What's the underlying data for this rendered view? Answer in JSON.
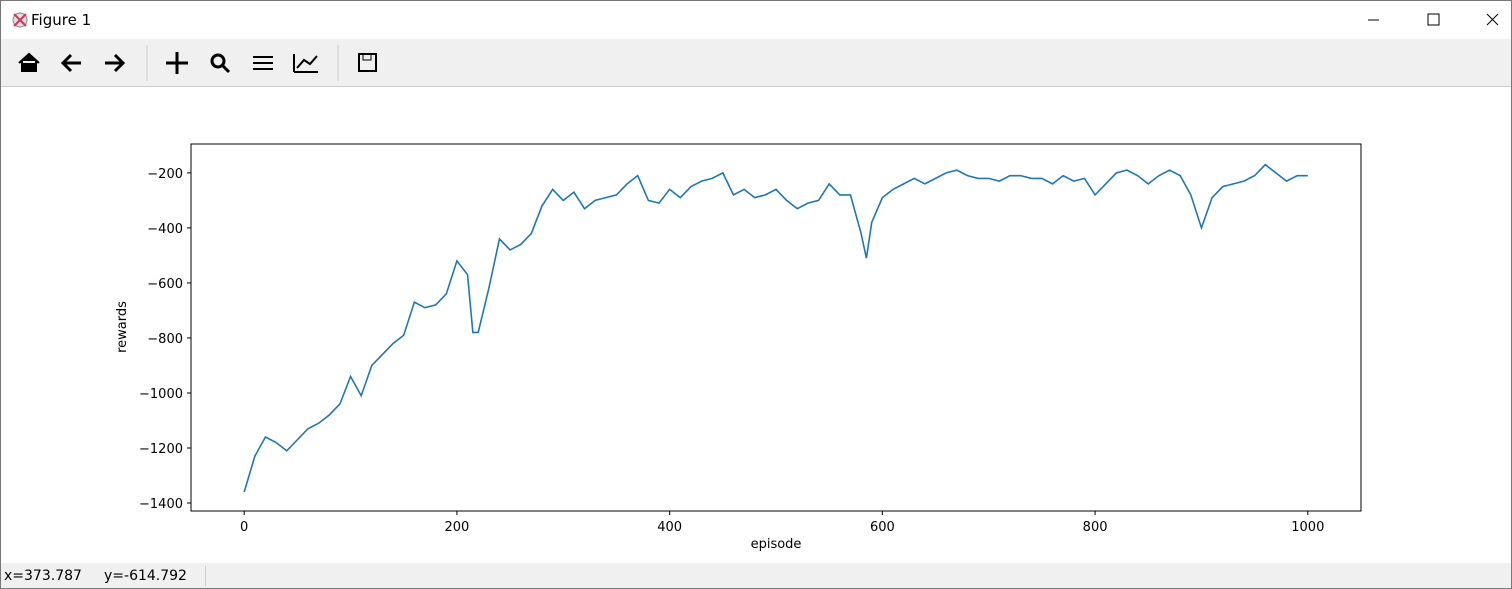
{
  "window": {
    "title": "Figure 1",
    "status": {
      "x": "x=373.787",
      "y": "y=-614.792"
    }
  },
  "chart_data": {
    "type": "line",
    "xlabel": "episode",
    "ylabel": "rewards",
    "color": "#1f77b4",
    "x": [
      0,
      10,
      20,
      30,
      40,
      50,
      60,
      70,
      80,
      90,
      100,
      110,
      120,
      130,
      140,
      150,
      160,
      170,
      180,
      190,
      200,
      210,
      215,
      220,
      230,
      240,
      250,
      260,
      270,
      280,
      290,
      300,
      310,
      320,
      330,
      340,
      350,
      360,
      370,
      380,
      390,
      400,
      410,
      420,
      430,
      440,
      450,
      460,
      470,
      480,
      490,
      500,
      510,
      520,
      530,
      540,
      550,
      560,
      570,
      580,
      585,
      590,
      600,
      610,
      620,
      630,
      640,
      650,
      660,
      670,
      680,
      690,
      700,
      710,
      720,
      730,
      740,
      750,
      760,
      770,
      780,
      790,
      800,
      810,
      820,
      830,
      840,
      850,
      860,
      870,
      880,
      890,
      900,
      910,
      920,
      930,
      940,
      950,
      960,
      970,
      980,
      990,
      1000
    ],
    "values": [
      -1360,
      -1230,
      -1160,
      -1180,
      -1210,
      -1170,
      -1130,
      -1110,
      -1080,
      -1040,
      -940,
      -1010,
      -900,
      -860,
      -820,
      -790,
      -670,
      -690,
      -680,
      -640,
      -520,
      -570,
      -780,
      -780,
      -620,
      -440,
      -480,
      -460,
      -420,
      -320,
      -260,
      -300,
      -270,
      -330,
      -300,
      -290,
      -280,
      -240,
      -210,
      -300,
      -310,
      -260,
      -290,
      -250,
      -230,
      -220,
      -200,
      -280,
      -260,
      -290,
      -280,
      -260,
      -300,
      -330,
      -310,
      -300,
      -240,
      -280,
      -280,
      -420,
      -510,
      -380,
      -290,
      -260,
      -240,
      -220,
      -240,
      -220,
      -200,
      -190,
      -210,
      -220,
      -220,
      -230,
      -210,
      -210,
      -220,
      -220,
      -240,
      -210,
      -230,
      -220,
      -280,
      -240,
      -200,
      -190,
      -210,
      -240,
      -210,
      -190,
      -210,
      -280,
      -400,
      -290,
      -250,
      -240,
      -230,
      -210,
      -170,
      -200,
      -230,
      -210,
      -210
    ],
    "xlim": [
      -50,
      1050
    ],
    "ylim": [
      -1429,
      -95
    ],
    "xticks": [
      0,
      200,
      400,
      600,
      800,
      1000
    ],
    "yticks": [
      {
        "value": -1400,
        "label": "−1400"
      },
      {
        "value": -1200,
        "label": "−1200"
      },
      {
        "value": -1000,
        "label": "−1000"
      },
      {
        "value": -800,
        "label": "−800"
      },
      {
        "value": -600,
        "label": "−600"
      },
      {
        "value": -400,
        "label": "−400"
      },
      {
        "value": -200,
        "label": "−200"
      }
    ]
  }
}
